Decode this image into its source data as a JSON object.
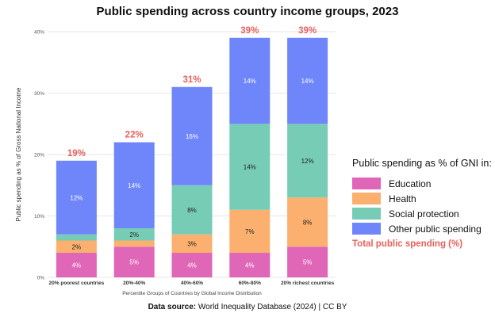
{
  "title": "Public spending across country income groups, 2023",
  "source_label": "Data source:",
  "source_text": "World Inequality Database (2024) | CC BY",
  "legend": {
    "title": "Public spending as % of GNI in:",
    "total_label": "Total public spending (%)"
  },
  "colors": {
    "education": "#e066b8",
    "health": "#fbb06f",
    "social": "#77ccb6",
    "other": "#6f86fb",
    "total": "#e8605c"
  },
  "chart_data": {
    "type": "bar",
    "stacked": true,
    "title": "Public spending across country income groups, 2023",
    "xlabel": "Percentile Groups of Countries by Global Income Distribution",
    "ylabel": "Public spending as % of Gross National Income",
    "ylim": [
      0,
      40
    ],
    "yticks": [
      0,
      10,
      20,
      30,
      40
    ],
    "ytick_labels": [
      "0%",
      "10%",
      "20%",
      "30%",
      "40%"
    ],
    "categories": [
      "20% poorest countries",
      "20%-40%",
      "40%-60%",
      "60%-80%",
      "20% richest countries"
    ],
    "series": [
      {
        "name": "Education",
        "values": [
          4,
          5,
          4,
          4,
          5
        ],
        "labels": [
          "4%",
          "5%",
          "4%",
          "4%",
          "5%"
        ]
      },
      {
        "name": "Health",
        "values": [
          2,
          1,
          3,
          7,
          8
        ],
        "labels": [
          "2%",
          "",
          "3%",
          "7%",
          "8%"
        ]
      },
      {
        "name": "Social protection",
        "values": [
          1,
          2,
          8,
          14,
          12
        ],
        "labels": [
          "",
          "2%",
          "8%",
          "14%",
          "12%"
        ]
      },
      {
        "name": "Other public spending",
        "values": [
          12,
          14,
          16,
          14,
          14
        ],
        "labels": [
          "12%",
          "14%",
          "16%",
          "14%",
          "14%"
        ]
      }
    ],
    "totals": [
      19,
      22,
      31,
      39,
      39
    ],
    "total_labels": [
      "19%",
      "22%",
      "31%",
      "39%",
      "39%"
    ],
    "legend_position": "right"
  }
}
